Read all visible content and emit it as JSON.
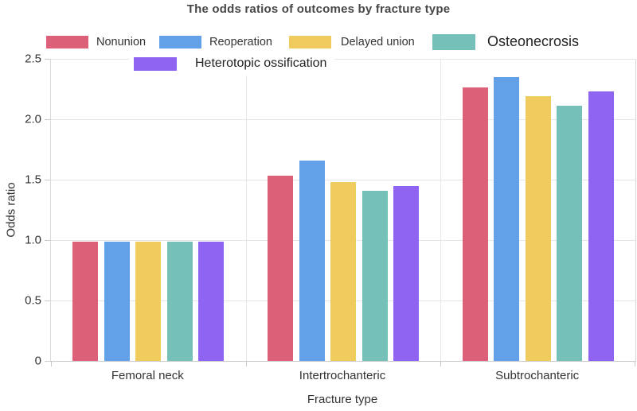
{
  "title": "The odds ratios of outcomes by fracture type",
  "chart_data": {
    "type": "bar",
    "title": "The odds ratios of outcomes by fracture type",
    "categories": [
      "Femoral neck",
      "Intertrochanteric",
      "Subtrochanteric"
    ],
    "series": [
      {
        "name": "Nonunion",
        "color": "#dc6078",
        "values": [
          0.99,
          1.53,
          2.26
        ]
      },
      {
        "name": "Reoperation",
        "color": "#62a0e8",
        "values": [
          0.99,
          1.66,
          2.35
        ]
      },
      {
        "name": "Delayed union",
        "color": "#f0cb5e",
        "values": [
          0.99,
          1.48,
          2.19
        ]
      },
      {
        "name": "Osteonecrosis",
        "color": "#75c1ba",
        "values": [
          0.99,
          1.41,
          2.11
        ]
      },
      {
        "name": "Heterotopic ossification",
        "color": "#8f64f3",
        "values": [
          0.99,
          1.45,
          2.23
        ]
      }
    ],
    "xlabel": "Fracture type",
    "ylabel": "Odds ratio",
    "ylim": [
      0,
      2.5
    ],
    "yticks": [
      "0",
      "0.5",
      "1.0",
      "1.5",
      "2.0",
      "2.5"
    ],
    "grid": true,
    "legend_position": "top"
  },
  "colors": {
    "grid": "#e5e5e5",
    "axis": "#c9c9c9",
    "text": "#333333",
    "title_text": "#474747",
    "background": "#ffffff"
  }
}
